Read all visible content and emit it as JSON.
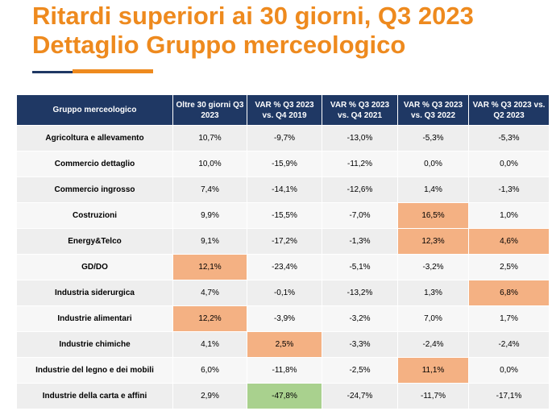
{
  "title": {
    "line1": "Ritardi superiori ai 30 giorni, Q3 2023",
    "line2": "Dettaglio Gruppo merceologico"
  },
  "colors": {
    "accent": "#ee8a1e",
    "header_bg": "#1f3864",
    "highlight_orange": "#f4b183",
    "highlight_green": "#a9d18e"
  },
  "table": {
    "headers": [
      "Gruppo merceologico",
      "Oltre 30 giorni Q3 2023",
      "VAR % Q3 2023 vs. Q4 2019",
      "VAR % Q3 2023 vs. Q4 2021",
      "VAR % Q3 2023 vs. Q3 2022",
      "VAR % Q3 2023 vs. Q2 2023"
    ],
    "rows": [
      [
        "Agricoltura e allevamento",
        "10,7%",
        "-9,7%",
        "-13,0%",
        "-5,3%",
        "-5,3%"
      ],
      [
        "Commercio dettaglio",
        "10,0%",
        "-15,9%",
        "-11,2%",
        "0,0%",
        "0,0%"
      ],
      [
        "Commercio ingrosso",
        "7,4%",
        "-14,1%",
        "-12,6%",
        "1,4%",
        "-1,3%"
      ],
      [
        "Costruzioni",
        "9,9%",
        "-15,5%",
        "-7,0%",
        "16,5%",
        "1,0%"
      ],
      [
        "Energy&Telco",
        "9,1%",
        "-17,2%",
        "-1,3%",
        "12,3%",
        "4,6%"
      ],
      [
        "GD/DO",
        "12,1%",
        "-23,4%",
        "-5,1%",
        "-3,2%",
        "2,5%"
      ],
      [
        "Industria siderurgica",
        "4,7%",
        "-0,1%",
        "-13,2%",
        "1,3%",
        "6,8%"
      ],
      [
        "Industrie alimentari",
        "12,2%",
        "-3,9%",
        "-3,2%",
        "7,0%",
        "1,7%"
      ],
      [
        "Industrie chimiche",
        "4,1%",
        "2,5%",
        "-3,3%",
        "-2,4%",
        "-2,4%"
      ],
      [
        "Industrie del legno e dei mobili",
        "6,0%",
        "-11,8%",
        "-2,5%",
        "11,1%",
        "0,0%"
      ],
      [
        "Industrie della carta e affini",
        "2,9%",
        "-47,8%",
        "-24,7%",
        "-11,7%",
        "-17,1%"
      ]
    ],
    "highlights": {
      "orange": [
        [
          3,
          4
        ],
        [
          4,
          4
        ],
        [
          4,
          5
        ],
        [
          5,
          1
        ],
        [
          6,
          5
        ],
        [
          7,
          1
        ],
        [
          8,
          2
        ],
        [
          9,
          4
        ]
      ],
      "green": [
        [
          10,
          2
        ]
      ]
    }
  }
}
